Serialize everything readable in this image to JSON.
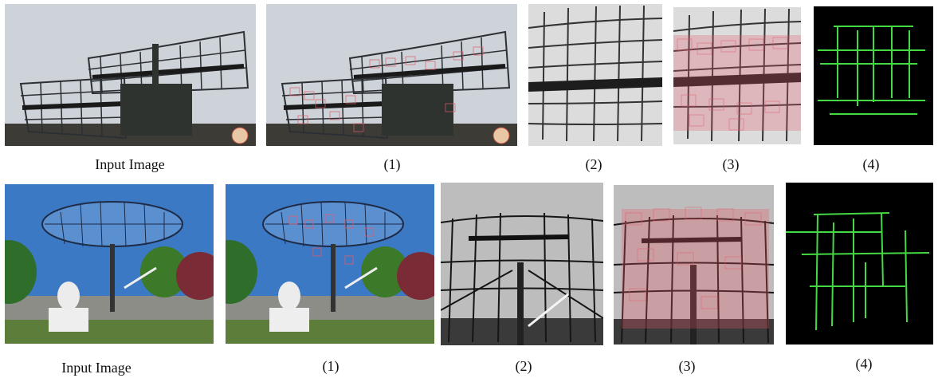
{
  "rows": [
    {
      "captions": [
        "Input Image",
        "(1)",
        "(2)",
        "(3)",
        "(4)"
      ]
    },
    {
      "captions": [
        "Input Image",
        "(1)",
        "(2)",
        "(3)",
        "(4)"
      ]
    }
  ],
  "colors": {
    "sky_gray": "#c9d0d6",
    "sky_blue": "#3b79c4",
    "grid_line": "#2c2f33",
    "detect_box": "#e45a6a",
    "edge_green": "#44d844",
    "black": "#000000"
  }
}
